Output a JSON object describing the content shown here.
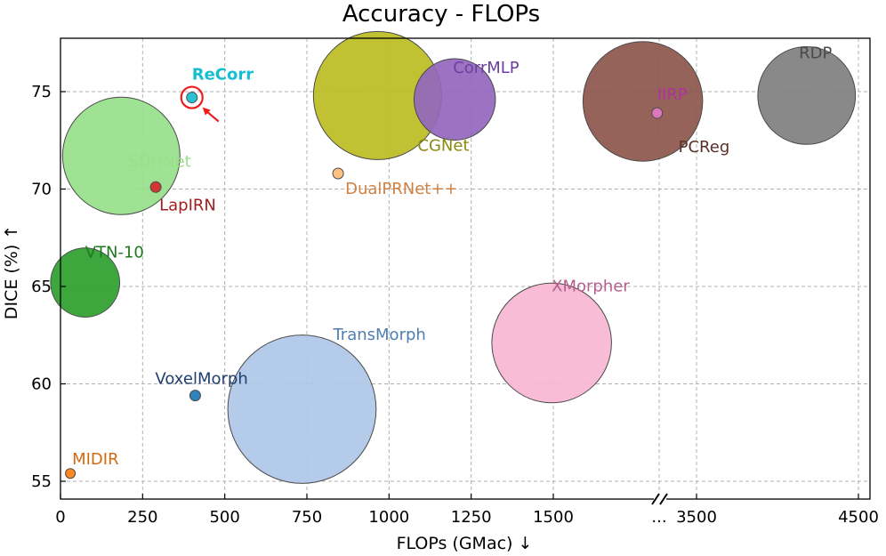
{
  "chart_data": {
    "type": "scatter",
    "subtype": "bubble",
    "title": "Accuracy - FLOPs",
    "xlabel": "FLOPs (GMac) ↓",
    "ylabel": "DICE (%) ↑",
    "xlim": [
      0,
      4500
    ],
    "ylim": [
      54,
      78
    ],
    "x_ticks": [
      "0",
      "250",
      "500",
      "750",
      "1000",
      "1250",
      "1500",
      "...",
      "3500",
      "4500"
    ],
    "y_ticks": [
      "55",
      "60",
      "65",
      "70",
      "75"
    ],
    "axis_break": "between 1500 and 3500",
    "grid": true,
    "points": [
      {
        "name": "ReCorr",
        "flops": 400,
        "dice": 74.7,
        "size": 1,
        "color": "#17becf",
        "highlight": true,
        "bold": true
      },
      {
        "name": "SDHNet",
        "flops": 185,
        "dice": 71.7,
        "size": 52,
        "color": "#98df8a"
      },
      {
        "name": "LapIRN",
        "flops": 290,
        "dice": 70.1,
        "size": 1,
        "color": "#d62728",
        "label_color": "#a02020"
      },
      {
        "name": "VTN-10",
        "flops": 75,
        "dice": 65.2,
        "size": 18,
        "color": "#2ca02c",
        "label_color": "#1f7a1f"
      },
      {
        "name": "VoxelMorph",
        "flops": 410,
        "dice": 59.4,
        "size": 1,
        "color": "#1f77b4",
        "label_color": "#1f3f6f"
      },
      {
        "name": "MIDIR",
        "flops": 30,
        "dice": 55.4,
        "size": 0.5,
        "color": "#ff7f0e",
        "label_color": "#d46a10"
      },
      {
        "name": "CGNet",
        "flops": 965,
        "dice": 74.8,
        "size": 62,
        "color": "#bcbd22",
        "label_color": "#8a8a10"
      },
      {
        "name": "CorrMLP",
        "flops": 1200,
        "dice": 74.6,
        "size": 25,
        "color": "#9467bd",
        "label_color": "#6a3fa0"
      },
      {
        "name": "DualPRNet++",
        "flops": 845,
        "dice": 70.8,
        "size": 1,
        "color": "#ffbb78",
        "label_color": "#d08040"
      },
      {
        "name": "TransMorph",
        "flops": 735,
        "dice": 58.7,
        "size": 83,
        "color": "#aec7e8",
        "label_color": "#4f7fb0"
      },
      {
        "name": "XMorpher",
        "flops": 1495,
        "dice": 62.1,
        "size": 54,
        "color": "#f7b6d2",
        "label_color": "#b5608f"
      },
      {
        "name": "PCReg",
        "flops": 2750,
        "dice": 74.5,
        "size": 54,
        "color": "#8c564b",
        "label_color": "#5a3028"
      },
      {
        "name": "IIRP",
        "flops": 2950,
        "dice": 73.9,
        "size": 1,
        "color": "#e377c2",
        "label_color": "#b030a0"
      },
      {
        "name": "RDP",
        "flops": 4180,
        "dice": 74.8,
        "size": 36,
        "color": "#7f7f7f",
        "label_color": "#4a4a4a"
      }
    ]
  }
}
